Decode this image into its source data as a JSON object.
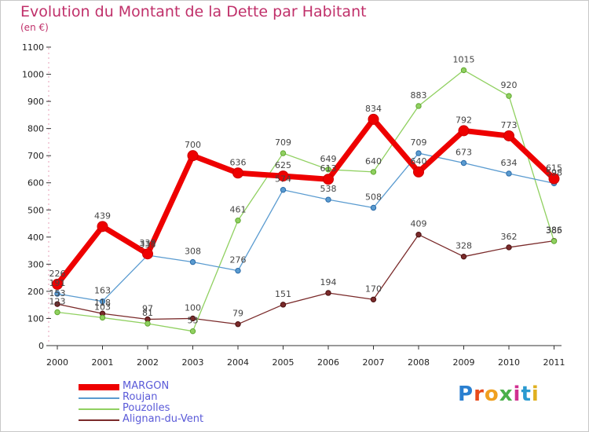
{
  "title": "Evolution du Montant de la Dette par Habitant",
  "subtitle": "(en €)",
  "logo_text": "Proxiti",
  "chart_data": {
    "type": "line",
    "x": [
      "2000",
      "2001",
      "2002",
      "2003",
      "2004",
      "2005",
      "2006",
      "2007",
      "2008",
      "2009",
      "2010",
      "2011"
    ],
    "ylim": [
      0,
      1100
    ],
    "yticks": [
      0,
      100,
      200,
      300,
      400,
      500,
      600,
      700,
      800,
      900,
      1000,
      1100
    ],
    "grid": false,
    "legend_position": "bottom-left",
    "series": [
      {
        "name": "MARGON",
        "color": "#ee0000",
        "values": [
          226,
          439,
          338,
          700,
          636,
          625,
          613,
          834,
          640,
          792,
          773,
          615
        ]
      },
      {
        "name": "Roujan",
        "color": "#5a9bd0",
        "values": [
          191,
          163,
          333,
          308,
          276,
          574,
          538,
          508,
          709,
          673,
          634,
          598
        ]
      },
      {
        "name": "Pouzolles",
        "color": "#90d060",
        "values": [
          123,
          103,
          81,
          53,
          461,
          709,
          649,
          640,
          883,
          1015,
          920,
          385
        ]
      },
      {
        "name": "Alignan-du-Vent",
        "color": "#7a2a2a",
        "values": [
          153,
          118,
          97,
          100,
          79,
          151,
          194,
          170,
          409,
          328,
          362,
          386
        ]
      }
    ]
  }
}
